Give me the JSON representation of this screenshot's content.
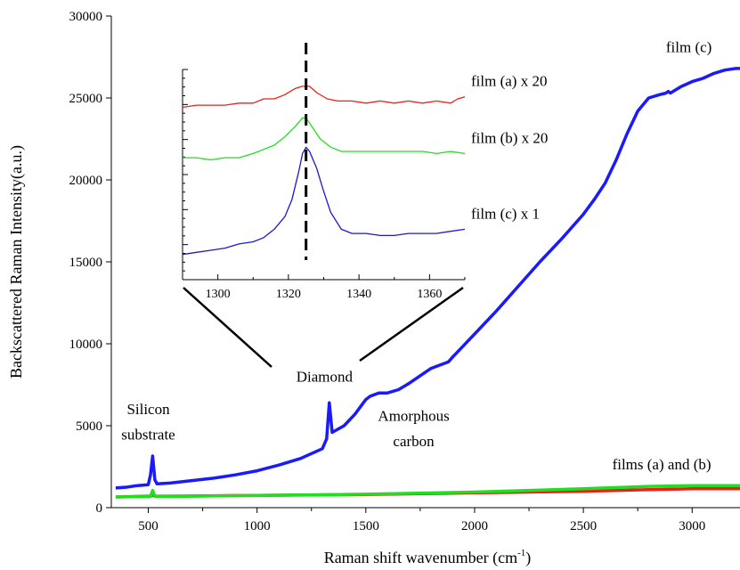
{
  "chart_data": [
    {
      "id": "main",
      "type": "line",
      "xlabel": "Raman shift wavenumber (cm",
      "xlabel_sup": "-1",
      "xlabel_tail": ")",
      "ylabel": "Backscattered Raman Intensity(a.u.)",
      "xlim": [
        330,
        3220
      ],
      "ylim": [
        0,
        30000
      ],
      "xticks": [
        500,
        1000,
        1500,
        2000,
        2500,
        3000
      ],
      "yticks": [
        0,
        5000,
        10000,
        15000,
        20000,
        25000,
        30000
      ],
      "grid": false,
      "series": [
        {
          "name": "film (c)",
          "color": "#1a1aff",
          "x": [
            350,
            400,
            450,
            500,
            510,
            520,
            530,
            540,
            600,
            700,
            800,
            900,
            1000,
            1100,
            1200,
            1250,
            1300,
            1320,
            1332,
            1345,
            1360,
            1400,
            1450,
            1500,
            1520,
            1560,
            1600,
            1650,
            1700,
            1800,
            1880,
            1900,
            1950,
            2000,
            2100,
            2200,
            2300,
            2400,
            2500,
            2550,
            2600,
            2650,
            2700,
            2750,
            2800,
            2850,
            2880,
            2890,
            2900,
            2950,
            3000,
            3050,
            3100,
            3150,
            3200,
            3220
          ],
          "y": [
            1200,
            1250,
            1350,
            1400,
            2000,
            3150,
            1700,
            1450,
            1500,
            1650,
            1800,
            2000,
            2250,
            2600,
            3000,
            3300,
            3600,
            4200,
            6400,
            4600,
            4700,
            5000,
            5700,
            6600,
            6800,
            7000,
            7000,
            7200,
            7600,
            8500,
            8900,
            9200,
            9900,
            10600,
            12000,
            13500,
            15000,
            16400,
            17900,
            18800,
            19800,
            21200,
            22800,
            24200,
            25000,
            25200,
            25300,
            25400,
            25300,
            25700,
            26000,
            26200,
            26500,
            26700,
            26800,
            26800
          ]
        },
        {
          "name": "film (a)",
          "color": "#e8201a",
          "x": [
            350,
            500,
            510,
            520,
            530,
            600,
            1000,
            1500,
            2000,
            2500,
            2800,
            3000,
            3220
          ],
          "y": [
            650,
            700,
            700,
            750,
            700,
            700,
            750,
            800,
            900,
            1000,
            1100,
            1150,
            1150
          ]
        },
        {
          "name": "film (b)",
          "color": "#22dd22",
          "x": [
            350,
            500,
            510,
            520,
            530,
            600,
            1000,
            1500,
            2000,
            2500,
            2800,
            3000,
            3220
          ],
          "y": [
            650,
            680,
            700,
            1050,
            700,
            680,
            750,
            820,
            950,
            1150,
            1300,
            1350,
            1350
          ]
        }
      ],
      "annotations": [
        {
          "text": "film (c)",
          "x": 2985,
          "y": 27800
        },
        {
          "text": "Silicon",
          "x": 500,
          "y": 5700
        },
        {
          "text": "substrate",
          "x": 500,
          "y": 4150
        },
        {
          "text": "Amorphous",
          "x": 1720,
          "y": 5300
        },
        {
          "text": "carbon",
          "x": 1720,
          "y": 3750
        },
        {
          "text": "Diamond",
          "x": 1310,
          "y": 7700
        },
        {
          "text": "films (a) and (b)",
          "x": 2860,
          "y": 2350
        }
      ]
    },
    {
      "id": "inset",
      "type": "line",
      "xlim": [
        1290,
        1370
      ],
      "ylim": [
        0,
        1
      ],
      "xticks": [
        1300,
        1320,
        1340,
        1360
      ],
      "y_tick_labels": false,
      "marker_x": 1325,
      "series": [
        {
          "name": "film (a) x 20",
          "color": "#e8201a",
          "x": [
            1290,
            1294,
            1298,
            1302,
            1306,
            1310,
            1313,
            1316,
            1319,
            1322,
            1324,
            1326,
            1328,
            1331,
            1334,
            1338,
            1342,
            1346,
            1350,
            1354,
            1358,
            1362,
            1366,
            1368,
            1370
          ],
          "y": [
            0.82,
            0.83,
            0.83,
            0.83,
            0.84,
            0.84,
            0.86,
            0.86,
            0.88,
            0.91,
            0.92,
            0.92,
            0.89,
            0.86,
            0.85,
            0.85,
            0.84,
            0.85,
            0.84,
            0.85,
            0.84,
            0.85,
            0.84,
            0.86,
            0.87
          ]
        },
        {
          "name": "film (b) x 20",
          "color": "#22dd22",
          "x": [
            1290,
            1294,
            1298,
            1302,
            1306,
            1310,
            1313,
            1316,
            1319,
            1322,
            1324,
            1325,
            1327,
            1329,
            1332,
            1335,
            1338,
            1342,
            1346,
            1350,
            1354,
            1358,
            1362,
            1366,
            1370
          ],
          "y": [
            0.58,
            0.58,
            0.57,
            0.58,
            0.58,
            0.6,
            0.62,
            0.64,
            0.68,
            0.73,
            0.77,
            0.77,
            0.72,
            0.67,
            0.63,
            0.61,
            0.61,
            0.61,
            0.61,
            0.61,
            0.61,
            0.61,
            0.6,
            0.61,
            0.6
          ]
        },
        {
          "name": "film (c) x 1",
          "color": "#1a1acc",
          "x": [
            1290,
            1294,
            1298,
            1302,
            1306,
            1310,
            1313,
            1316,
            1319,
            1321,
            1323,
            1324,
            1325,
            1326,
            1328,
            1330,
            1332,
            1335,
            1338,
            1342,
            1346,
            1350,
            1354,
            1358,
            1362,
            1366,
            1370
          ],
          "y": [
            0.12,
            0.13,
            0.14,
            0.15,
            0.17,
            0.18,
            0.2,
            0.24,
            0.3,
            0.38,
            0.52,
            0.6,
            0.63,
            0.61,
            0.53,
            0.42,
            0.32,
            0.24,
            0.22,
            0.22,
            0.21,
            0.21,
            0.22,
            0.22,
            0.22,
            0.23,
            0.24
          ]
        }
      ],
      "labels": [
        {
          "text": "film (a) x 20"
        },
        {
          "text": "film (b) x 20"
        },
        {
          "text": "film (c) x 1"
        }
      ]
    }
  ]
}
